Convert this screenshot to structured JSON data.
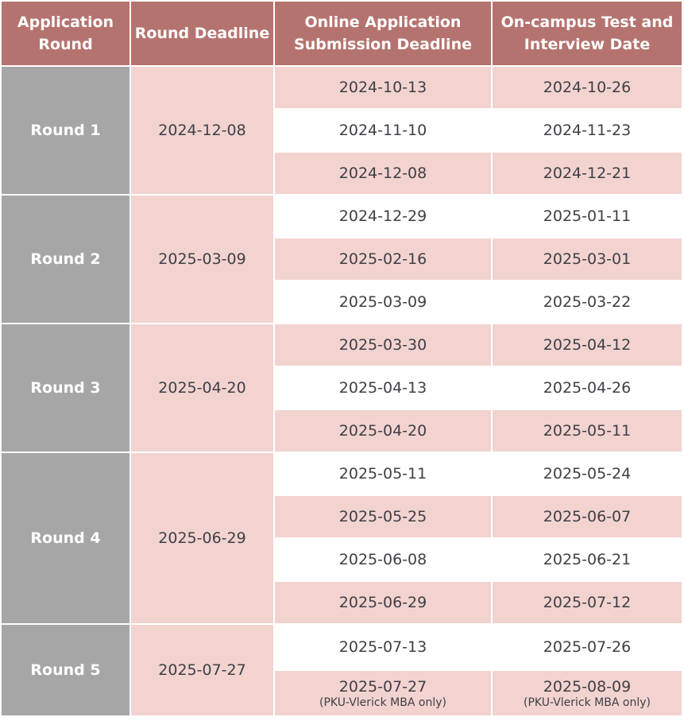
{
  "headers": {
    "round": "Application Round",
    "deadline": "Round Deadline",
    "online": "Online Application Submission Deadline",
    "oncampus": "On-campus Test and Interview Date"
  },
  "rounds": [
    {
      "name": "Round 1",
      "deadline": "2024-12-08",
      "rows": [
        {
          "online": "2024-10-13",
          "oncampus": "2024-10-26"
        },
        {
          "online": "2024-11-10",
          "oncampus": "2024-11-23"
        },
        {
          "online": "2024-12-08",
          "oncampus": "2024-12-21"
        }
      ]
    },
    {
      "name": "Round 2",
      "deadline": "2025-03-09",
      "rows": [
        {
          "online": "2024-12-29",
          "oncampus": "2025-01-11"
        },
        {
          "online": "2025-02-16",
          "oncampus": "2025-03-01"
        },
        {
          "online": "2025-03-09",
          "oncampus": "2025-03-22"
        }
      ]
    },
    {
      "name": "Round 3",
      "deadline": "2025-04-20",
      "rows": [
        {
          "online": "2025-03-30",
          "oncampus": "2025-04-12"
        },
        {
          "online": "2025-04-13",
          "oncampus": "2025-04-26"
        },
        {
          "online": "2025-04-20",
          "oncampus": "2025-05-11"
        }
      ]
    },
    {
      "name": "Round 4",
      "deadline": "2025-06-29",
      "rows": [
        {
          "online": "2025-05-11",
          "oncampus": "2025-05-24"
        },
        {
          "online": "2025-05-25",
          "oncampus": "2025-06-07"
        },
        {
          "online": "2025-06-08",
          "oncampus": "2025-06-21"
        },
        {
          "online": "2025-06-29",
          "oncampus": "2025-07-12"
        }
      ]
    },
    {
      "name": "Round 5",
      "deadline": "2025-07-27",
      "rows": [
        {
          "online": "2025-07-13",
          "oncampus": "2025-07-26"
        },
        {
          "online": "2025-07-27",
          "oncampus": "2025-08-09",
          "note_online": "(PKU-Vlerick MBA only)",
          "note_oncampus": "(PKU-Vlerick MBA only)"
        }
      ]
    }
  ],
  "colors": {
    "header_bg": "#b5736f",
    "round_bg": "#a6a6a6",
    "shade_bg": "#f2d3d0",
    "text": "#3f3f46"
  }
}
